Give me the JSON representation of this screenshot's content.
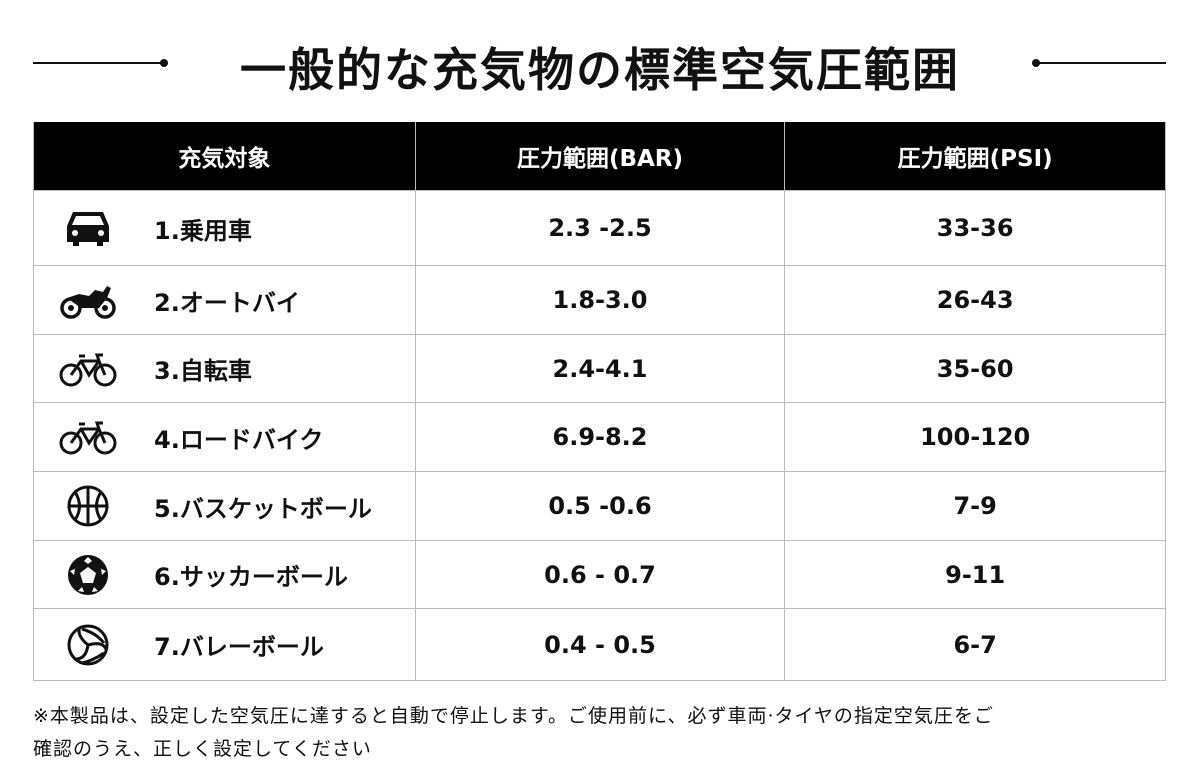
{
  "header": {
    "title": "一般的な充気物の標準空気圧範囲"
  },
  "table": {
    "columns": [
      "充気対象",
      "圧力範囲(BAR)",
      "圧力範囲(PSI)"
    ],
    "rows": [
      [
        "1.乗用車",
        "2.3 -2.5",
        "33-36"
      ],
      [
        "2.オートバイ",
        "1.8-3.0",
        "26-43"
      ],
      [
        "3.自転車",
        "2.4-4.1",
        "35-60"
      ],
      [
        "4.ロードバイク",
        "6.9-8.2",
        "100-120"
      ],
      [
        "5.バスケットボール",
        "0.5 -0.6",
        "7-9"
      ],
      [
        "6.サッカーボール",
        "0.6 - 0.7",
        "9-11"
      ],
      [
        "7.バレーボール",
        "0.4 - 0.5",
        "6-7"
      ]
    ]
  },
  "footnote": [
    "※本製品は、設定した空気圧に達すると自動で停止します。ご使用前に、必ず車両·タイヤの指定空気圧をご",
    "確認のうえ、正しく設定してください"
  ]
}
